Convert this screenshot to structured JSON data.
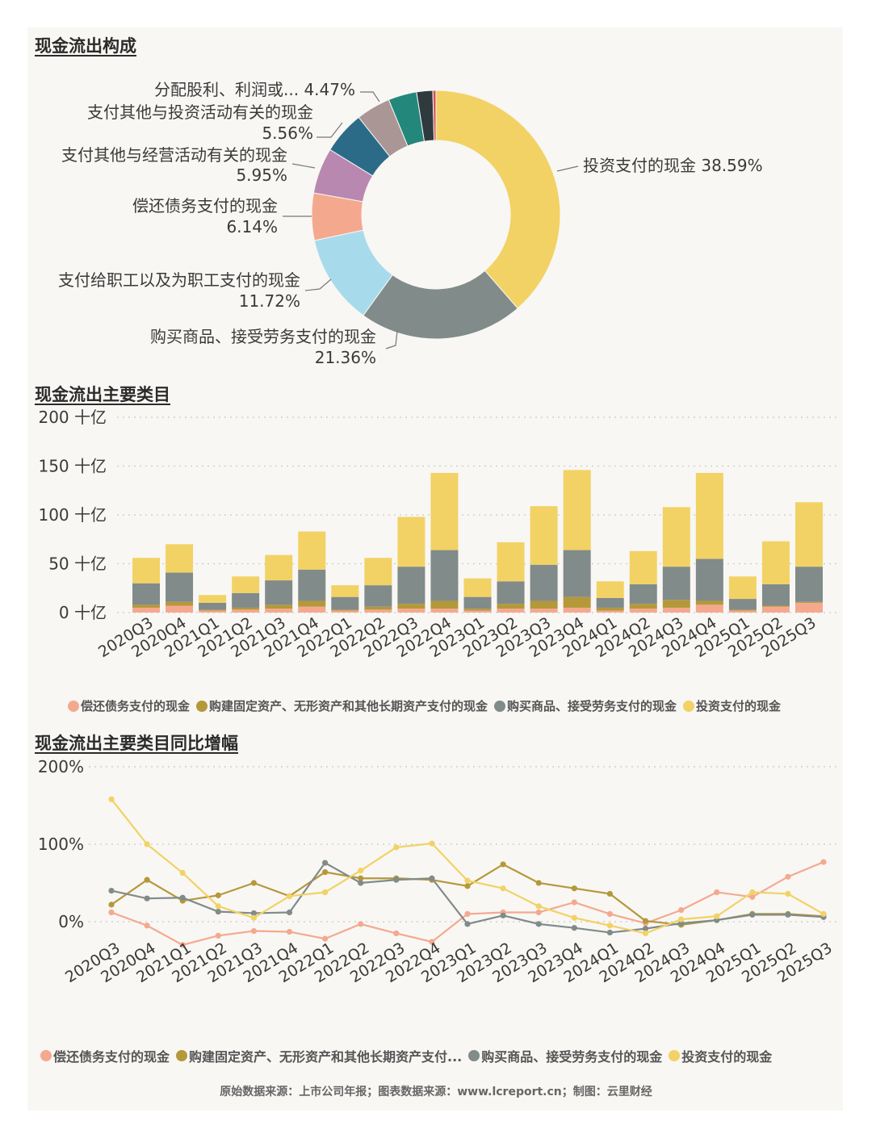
{
  "colors": {
    "debt": "#f4a98f",
    "fixed_assets": "#b5983a",
    "goods": "#808b8a",
    "investment": "#f2d264",
    "employees": "#a7dbec",
    "operating_other": "#b888b0",
    "investing_other": "#2c6b88",
    "dividends": "#ab9696",
    "teal": "#23877c",
    "dark": "#2e3a3d",
    "red": "#d9534f"
  },
  "sections": {
    "donut_title": "现金流出构成",
    "bar_title": "现金流出主要类目",
    "line_title": "现金流出主要类目同比增幅"
  },
  "donut_labels": [
    {
      "name": "投资支付的现金",
      "pct": "38.59%"
    },
    {
      "name": "购买商品、接受劳务支付的现金",
      "pct": "21.36%"
    },
    {
      "name": "支付给职工以及为职工支付的现金",
      "pct": "11.72%"
    },
    {
      "name": "偿还债务支付的现金",
      "pct": "6.14%"
    },
    {
      "name": "支付其他与经营活动有关的现金",
      "pct": "5.95%"
    },
    {
      "name": "支付其他与投资活动有关的现金",
      "pct": "5.56%"
    },
    {
      "name": "分配股利、利润或...",
      "pct": "4.47%"
    }
  ],
  "bar_legend": [
    "偿还债务支付的现金",
    "购建固定资产、无形资产和其他长期资产支付的现金",
    "购买商品、接受劳务支付的现金",
    "投资支付的现金"
  ],
  "line_legend": [
    "偿还债务支付的现金",
    "购建固定资产、无形资产和其他长期资产支付...",
    "购买商品、接受劳务支付的现金",
    "投资支付的现金"
  ],
  "source_note": "原始数据来源：上市公司年报；图表数据来源：www.lcreport.cn；制图：云里财经",
  "chart_data": [
    {
      "type": "pie",
      "title": "现金流出构成",
      "labels": [
        "投资支付的现金",
        "购买商品、接受劳务支付的现金",
        "支付给职工以及为职工支付的现金",
        "偿还债务支付的现金",
        "支付其他与经营活动有关的现金",
        "支付其他与投资活动有关的现金",
        "分配股利、利润或...",
        "",
        "",
        ""
      ],
      "values": [
        38.59,
        21.36,
        11.72,
        6.14,
        5.95,
        5.56,
        4.47,
        3.7,
        2.1,
        0.41
      ],
      "colors": [
        "#f2d264",
        "#808b8a",
        "#a7dbec",
        "#f4a98f",
        "#b888b0",
        "#2c6b88",
        "#ab9696",
        "#23877c",
        "#2e3a3d",
        "#d9534f"
      ]
    },
    {
      "type": "bar",
      "stacked": true,
      "title": "现金流出主要类目",
      "unit": "十亿",
      "categories": [
        "2020Q3",
        "2020Q4",
        "2021Q1",
        "2021Q2",
        "2021Q3",
        "2021Q4",
        "2022Q1",
        "2022Q2",
        "2022Q3",
        "2022Q4",
        "2023Q1",
        "2023Q2",
        "2023Q3",
        "2023Q4",
        "2024Q1",
        "2024Q2",
        "2024Q3",
        "2024Q4",
        "2025Q1",
        "2025Q2",
        "2025Q3"
      ],
      "yticks": [
        0,
        50,
        100,
        150,
        200
      ],
      "ylim": [
        0,
        200
      ],
      "series": [
        {
          "name": "偿还债务支付的现金",
          "color": "#f4a98f",
          "values": [
            5,
            7,
            2,
            3,
            4,
            6,
            2,
            3,
            4,
            4,
            2,
            4,
            4,
            5,
            2,
            4,
            5,
            8,
            2,
            6,
            10
          ]
        },
        {
          "name": "购建固定资产、无形资产和其他长期资产支付的现金",
          "color": "#b5983a",
          "values": [
            3,
            4,
            1,
            2,
            4,
            6,
            1,
            3,
            5,
            8,
            2,
            5,
            8,
            11,
            3,
            5,
            8,
            4,
            1,
            1,
            1
          ]
        },
        {
          "name": "购买商品、接受劳务支付的现金",
          "color": "#808b8a",
          "values": [
            22,
            30,
            7,
            15,
            25,
            32,
            13,
            22,
            38,
            52,
            12,
            23,
            37,
            48,
            10,
            20,
            34,
            43,
            11,
            22,
            36
          ]
        },
        {
          "name": "投资支付的现金",
          "color": "#f2d264",
          "values": [
            26,
            29,
            8,
            17,
            26,
            39,
            12,
            28,
            51,
            79,
            19,
            40,
            60,
            82,
            17,
            34,
            61,
            88,
            23,
            44,
            66
          ]
        }
      ]
    },
    {
      "type": "line",
      "title": "现金流出主要类目同比增幅",
      "categories": [
        "2020Q3",
        "2020Q4",
        "2021Q1",
        "2021Q2",
        "2021Q3",
        "2021Q4",
        "2022Q1",
        "2022Q2",
        "2022Q3",
        "2022Q4",
        "2023Q1",
        "2023Q2",
        "2023Q3",
        "2023Q4",
        "2024Q1",
        "2024Q2",
        "2024Q3",
        "2024Q4",
        "2025Q1",
        "2025Q2",
        "2025Q3"
      ],
      "yticks": [
        "0%",
        "100%",
        "200%"
      ],
      "ylim": [
        -50,
        210
      ],
      "series": [
        {
          "name": "偿还债务支付的现金",
          "color": "#f4a98f",
          "values": [
            12,
            -5,
            -30,
            -18,
            -12,
            -13,
            -22,
            -3,
            -15,
            -26,
            10,
            12,
            12,
            25,
            10,
            -2,
            15,
            38,
            32,
            58,
            77
          ]
        },
        {
          "name": "购建固定资产、无形资产和其他长期资产支付的现金",
          "color": "#b5983a",
          "values": [
            22,
            54,
            27,
            34,
            50,
            33,
            64,
            56,
            56,
            54,
            46,
            74,
            50,
            43,
            36,
            1,
            -4,
            2,
            10,
            10,
            7
          ]
        },
        {
          "name": "购买商品、接受劳务支付的现金",
          "color": "#808b8a",
          "values": [
            40,
            30,
            31,
            13,
            11,
            12,
            76,
            50,
            54,
            56,
            -3,
            8,
            -3,
            -8,
            -14,
            -9,
            -2,
            2,
            9,
            9,
            6
          ]
        },
        {
          "name": "投资支付的现金",
          "color": "#f2d264",
          "values": [
            158,
            100,
            63,
            20,
            5,
            33,
            38,
            66,
            96,
            101,
            53,
            43,
            20,
            5,
            -5,
            -15,
            3,
            7,
            38,
            36,
            10
          ]
        }
      ]
    }
  ]
}
